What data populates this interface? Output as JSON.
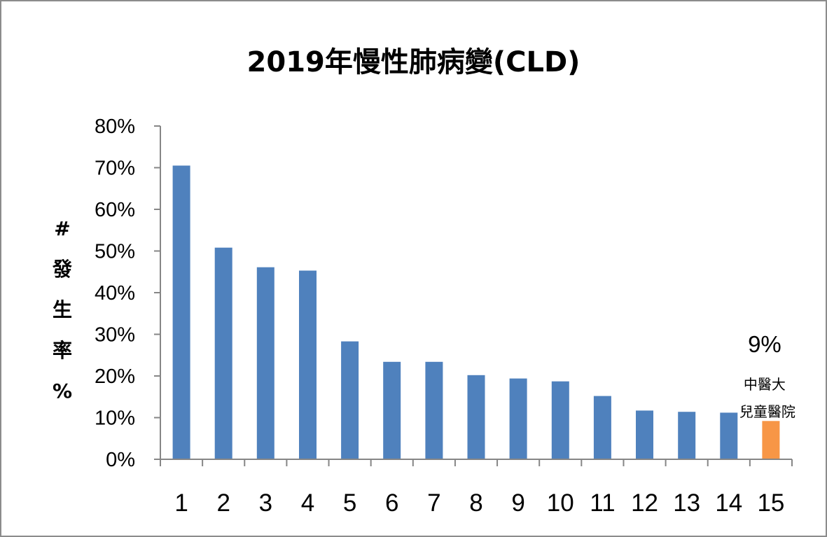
{
  "chart_data": {
    "type": "bar",
    "title": "2019年慢性肺病變(CLD)",
    "ylabel": [
      "#",
      "發",
      "生",
      "率",
      "%"
    ],
    "xlabel": "",
    "categories": [
      "1",
      "2",
      "3",
      "4",
      "5",
      "6",
      "7",
      "8",
      "9",
      "10",
      "11",
      "12",
      "13",
      "14",
      "15"
    ],
    "values": [
      70.5,
      50.8,
      46.1,
      45.3,
      28.3,
      23.4,
      23.4,
      20.2,
      19.4,
      18.7,
      15.2,
      11.7,
      11.4,
      11.2,
      9.2
    ],
    "ylim": [
      0,
      80
    ],
    "yticks": [
      "0%",
      "10%",
      "20%",
      "30%",
      "40%",
      "50%",
      "60%",
      "70%",
      "80%"
    ],
    "grid": false,
    "legend": "none",
    "colors": {
      "default": "#4f81bd",
      "highlight": "#f79646"
    },
    "highlight_index": 14,
    "annotation": {
      "value": "9%",
      "line1": "中醫大",
      "line2": "兒童醫院"
    }
  }
}
